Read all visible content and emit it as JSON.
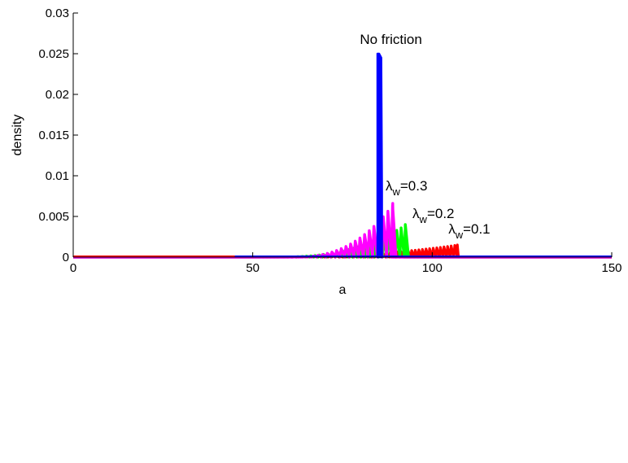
{
  "chart_data": {
    "type": "line",
    "xlabel": "a",
    "ylabel": "density",
    "xlim": [
      0,
      150
    ],
    "ylim": [
      0,
      0.03
    ],
    "xticks": [
      0,
      50,
      100,
      150
    ],
    "yticks": [
      0,
      0.005,
      0.01,
      0.015,
      0.02,
      0.025,
      0.03
    ],
    "xtick_labels": [
      "0",
      "50",
      "100",
      "150"
    ],
    "ytick_labels": [
      "0",
      "0.005",
      "0.01",
      "0.015",
      "0.02",
      "0.025",
      "0.03"
    ],
    "grid": false,
    "series": [
      {
        "key": "nofriction",
        "color": "#0000ff",
        "spike_x": 85,
        "x": [
          85,
          85.8
        ],
        "y": [
          0.025,
          0.0245
        ]
      },
      {
        "key": "lw03",
        "color": "#ff00ff",
        "x_start": 60,
        "x_end": 89,
        "peak": 0.0066
      },
      {
        "key": "lw02",
        "color": "#00ff00",
        "x_start": 55,
        "x_end": 92.5,
        "peak": 0.004
      },
      {
        "key": "lw01",
        "color": "#ff0000",
        "x_start": 45,
        "x_end": 107,
        "peak": 0.0015
      }
    ],
    "annotations": [
      {
        "key": "nofriction",
        "text": "No friction",
        "x": 88.5,
        "y": 0.0262
      },
      {
        "key": "lw03",
        "base": "λ",
        "sub": "w",
        "rest": "=0.3",
        "x": 87,
        "y": 0.0082
      },
      {
        "key": "lw02",
        "base": "λ",
        "sub": "w",
        "rest": "=0.2",
        "x": 94.5,
        "y": 0.0048
      },
      {
        "key": "lw01",
        "base": "λ",
        "sub": "w",
        "rest": "=0.1",
        "x": 104.5,
        "y": 0.0029
      }
    ]
  }
}
